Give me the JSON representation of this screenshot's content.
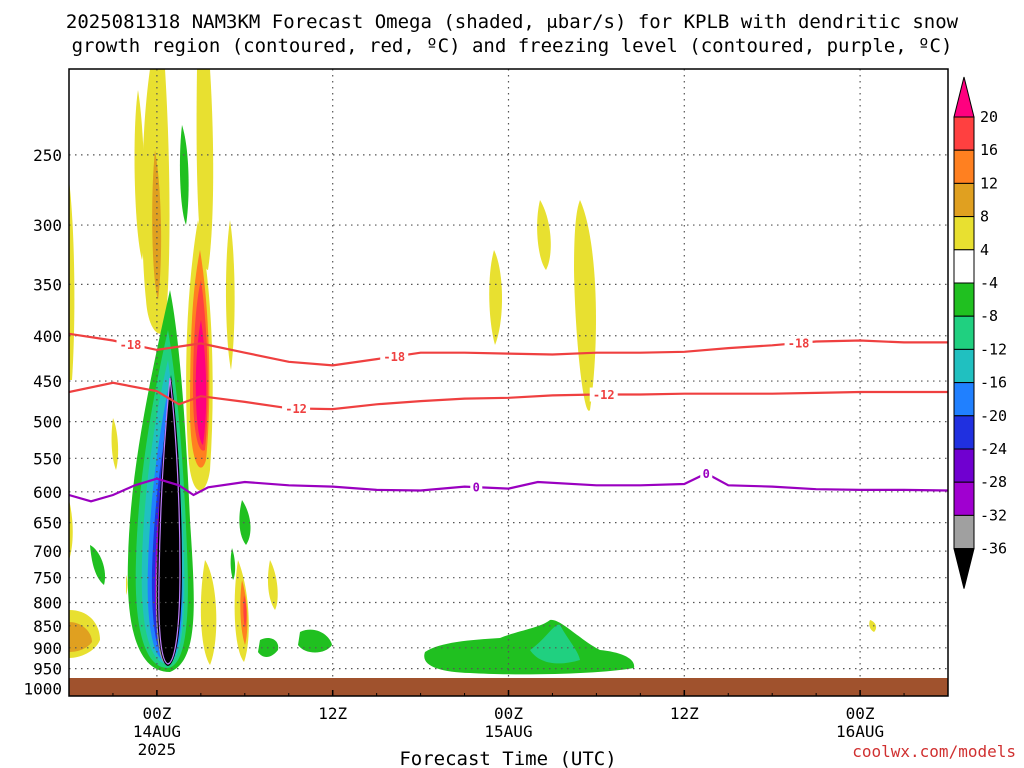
{
  "chart_data": {
    "type": "heatmap",
    "title_line1": "2025081318 NAM3KM Forecast Omega (shaded, μbar/s) for KPLB with dendritic snow",
    "title_line2": "growth region (contoured, red, ºC) and freezing level (contoured, purple, ºC)",
    "xlabel": "Forecast Time (UTC)",
    "ylabel": "",
    "credit": "coolwx.com/models",
    "x_range_hours": [
      18,
      78
    ],
    "x_ticks": [
      {
        "hour": 24,
        "lines": [
          "00Z",
          "14AUG",
          "2025"
        ]
      },
      {
        "hour": 36,
        "lines": [
          "12Z"
        ]
      },
      {
        "hour": 48,
        "lines": [
          "00Z",
          "15AUG"
        ]
      },
      {
        "hour": 60,
        "lines": [
          "12Z"
        ]
      },
      {
        "hour": 72,
        "lines": [
          "00Z",
          "16AUG"
        ]
      }
    ],
    "y_range_hpa": [
      200,
      1020
    ],
    "y_scale": "log",
    "y_ticks": [
      250,
      300,
      350,
      400,
      450,
      500,
      550,
      600,
      650,
      700,
      750,
      800,
      850,
      900,
      950,
      1000
    ],
    "grid": true,
    "colorbar": {
      "labels": [
        "20",
        "16",
        "12",
        "8",
        "4",
        "-4",
        "-8",
        "-12",
        "-16",
        "-20",
        "-24",
        "-28",
        "-32",
        "-36"
      ],
      "colors": [
        "#ff007f",
        "#ff4040",
        "#ff8020",
        "#e0a020",
        "#e8e030",
        "#ffffff",
        "#20c020",
        "#20d080",
        "#20c0c0",
        "#2080ff",
        "#2030e0",
        "#7000d0",
        "#a000d0",
        "#a0a0a0",
        "#000000"
      ]
    },
    "contours": [
      {
        "name": "-18",
        "color": "#ef4040",
        "labels_at_hours": [
          22.2,
          40.2,
          67.8
        ],
        "points": [
          [
            18,
            398
          ],
          [
            21,
            405
          ],
          [
            24,
            415
          ],
          [
            27,
            408
          ],
          [
            30,
            418
          ],
          [
            33,
            428
          ],
          [
            36,
            432
          ],
          [
            39,
            425
          ],
          [
            42,
            418
          ],
          [
            45,
            418
          ],
          [
            48,
            419
          ],
          [
            51,
            420
          ],
          [
            54,
            418
          ],
          [
            57,
            418
          ],
          [
            60,
            417
          ],
          [
            63,
            413
          ],
          [
            66,
            410
          ],
          [
            69,
            406
          ],
          [
            72,
            405
          ],
          [
            75,
            407
          ],
          [
            78,
            407
          ]
        ]
      },
      {
        "name": "-12",
        "color": "#ef4040",
        "labels_at_hours": [
          33.5,
          54.5
        ],
        "points": [
          [
            18,
            463
          ],
          [
            21,
            452
          ],
          [
            24,
            462
          ],
          [
            25.5,
            478
          ],
          [
            27,
            468
          ],
          [
            30,
            475
          ],
          [
            33,
            483
          ],
          [
            36,
            484
          ],
          [
            39,
            478
          ],
          [
            42,
            474
          ],
          [
            45,
            471
          ],
          [
            48,
            470
          ],
          [
            51,
            467
          ],
          [
            54,
            466
          ],
          [
            57,
            466
          ],
          [
            60,
            465
          ],
          [
            63,
            465
          ],
          [
            66,
            465
          ],
          [
            69,
            464
          ],
          [
            72,
            463
          ],
          [
            75,
            463
          ],
          [
            78,
            463
          ]
        ]
      },
      {
        "name": "0",
        "color": "#9a00c0",
        "labels_at_hours": [
          45.8,
          61.5
        ],
        "points": [
          [
            18,
            605
          ],
          [
            19.5,
            615
          ],
          [
            21,
            605
          ],
          [
            22.5,
            590
          ],
          [
            24,
            580
          ],
          [
            25.5,
            590
          ],
          [
            26.5,
            605
          ],
          [
            27.5,
            593
          ],
          [
            30,
            585
          ],
          [
            33,
            590
          ],
          [
            36,
            592
          ],
          [
            39,
            597
          ],
          [
            42,
            598
          ],
          [
            45,
            592
          ],
          [
            48,
            595
          ],
          [
            50,
            585
          ],
          [
            54,
            590
          ],
          [
            57,
            590
          ],
          [
            60,
            588
          ],
          [
            61.5,
            572
          ],
          [
            63,
            590
          ],
          [
            66,
            592
          ],
          [
            69,
            596
          ],
          [
            72,
            597
          ],
          [
            75,
            597
          ],
          [
            78,
            598
          ]
        ]
      }
    ]
  }
}
